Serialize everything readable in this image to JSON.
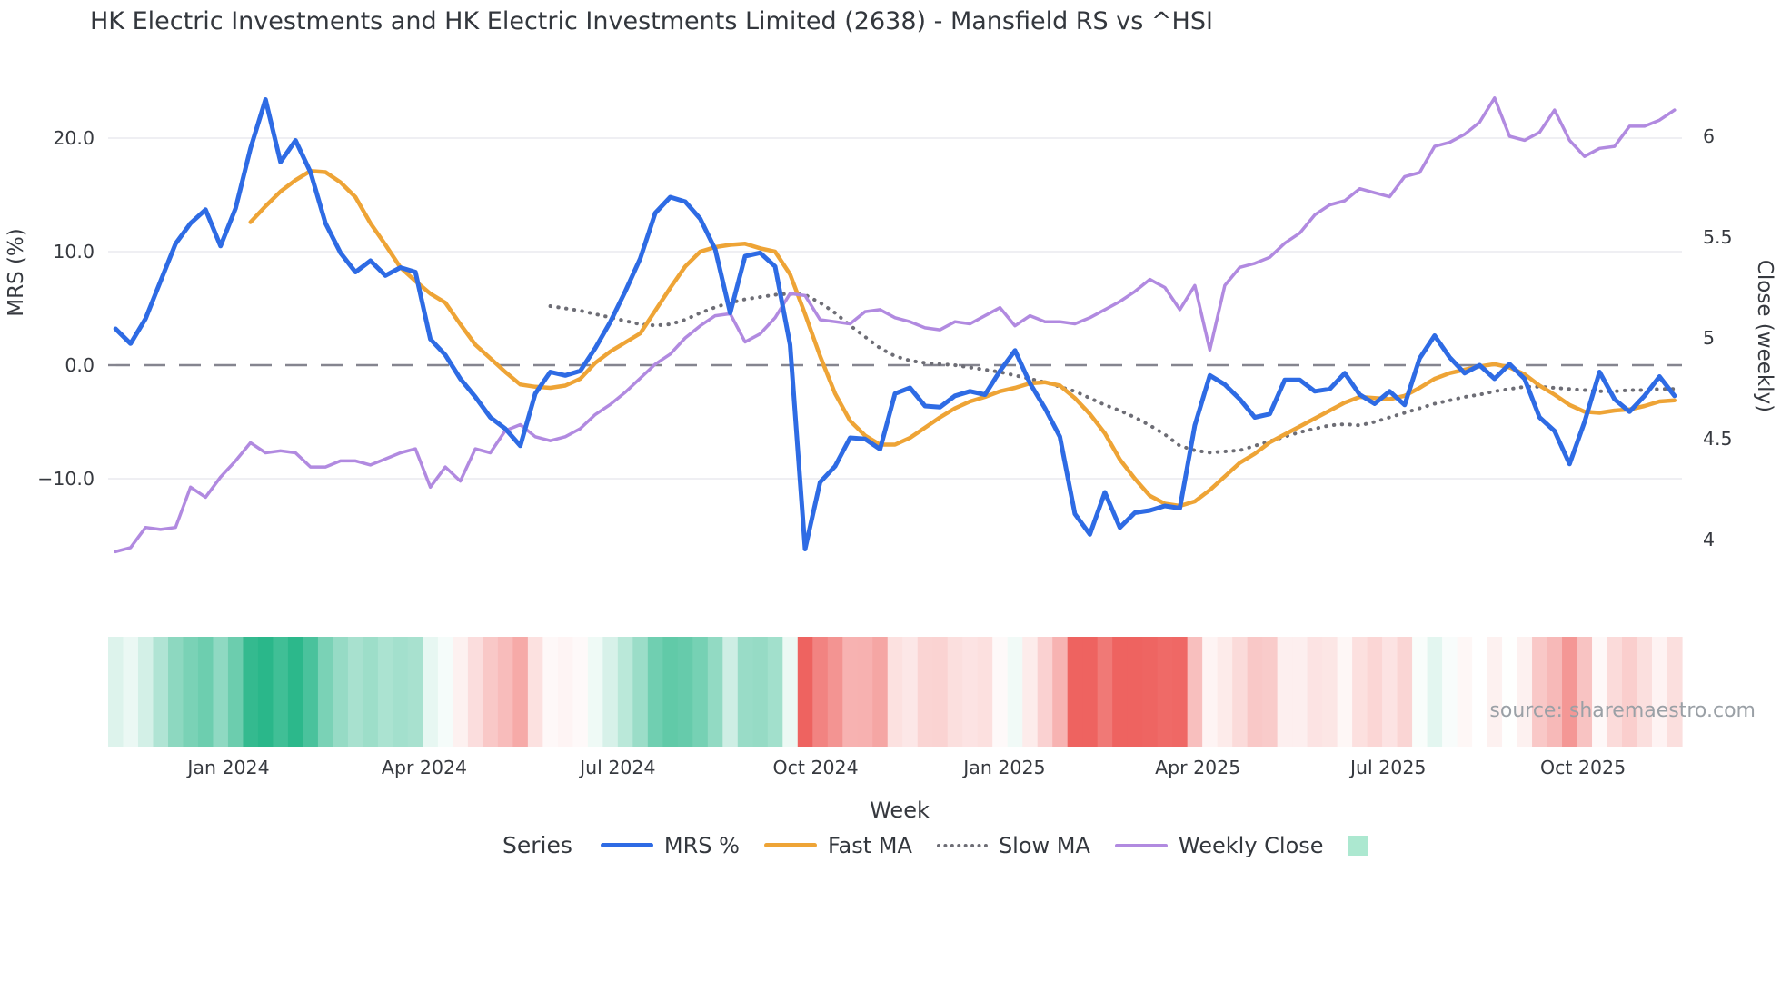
{
  "title": "HK Electric Investments and HK Electric Investments Limited (2638) - Mansfield RS vs ^HSI",
  "watermark": "source: sharemaestro.com",
  "axes": {
    "left_title": "MRS (%)",
    "right_title": "Close (weekly)",
    "x_title": "Week"
  },
  "legend": {
    "title": "Series",
    "items": [
      {
        "label": "MRS %",
        "swatch": "line",
        "color": "#2e6be4"
      },
      {
        "label": "Fast MA",
        "swatch": "line",
        "color": "#eea436"
      },
      {
        "label": "Slow MA",
        "swatch": "dotted",
        "color": "#6d6d75"
      },
      {
        "label": "Weekly Close",
        "swatch": "thin-line",
        "color": "#b18ae0"
      },
      {
        "label": "",
        "swatch": "square",
        "color": "#ace8d0"
      }
    ]
  },
  "chart_data": {
    "type": "line",
    "title": "HK Electric Investments and HK Electric Investments Limited (2638) - Mansfield RS vs ^HSI",
    "xlabel": "Week",
    "n_weeks": 105,
    "x_axis": {
      "tick_labels": [
        "Jan 2024",
        "Apr 2024",
        "Jul 2024",
        "Oct 2024",
        "Jan 2025",
        "Apr 2025",
        "Jul 2025",
        "Oct 2025"
      ],
      "tick_week_positions": [
        7.53,
        20.6,
        33.5,
        46.7,
        59.3,
        72.2,
        84.9,
        97.9
      ]
    },
    "y_left": {
      "label": "MRS (%)",
      "tick_labels": [
        "20.0",
        "10.0",
        "0.0",
        "−10.0"
      ],
      "tick_values": [
        20,
        10,
        0,
        -10
      ],
      "grid_tick_values": [
        20,
        10,
        -10
      ],
      "range": [
        -17.4,
        25.4
      ],
      "zero_line": "dashed"
    },
    "y_right": {
      "label": "Close (weekly)",
      "tick_labels": [
        "6",
        "5.5",
        "5",
        "4.5",
        "4"
      ],
      "tick_values": [
        6,
        5.5,
        5,
        4.5,
        4
      ],
      "range": [
        3.88,
        6.29
      ]
    },
    "series": [
      {
        "name": "MRS %",
        "axis": "left",
        "color": "#2e6be4",
        "style": "solid",
        "width": 5,
        "values": [
          3.2,
          1.9,
          4.1,
          7.4,
          10.7,
          12.5,
          13.7,
          10.5,
          13.8,
          19.1,
          23.4,
          17.9,
          19.8,
          17.0,
          12.5,
          9.9,
          8.2,
          9.2,
          7.9,
          8.6,
          8.2,
          2.3,
          0.9,
          -1.2,
          -2.8,
          -4.6,
          -5.6,
          -7.1,
          -2.5,
          -0.6,
          -0.9,
          -0.5,
          1.5,
          3.8,
          6.5,
          9.4,
          13.4,
          14.8,
          14.4,
          12.9,
          10.2,
          4.6,
          9.6,
          9.9,
          8.7,
          1.8,
          -16.2,
          -10.3,
          -8.9,
          -6.4,
          -6.5,
          -7.4,
          -2.5,
          -2.0,
          -3.6,
          -3.7,
          -2.7,
          -2.3,
          -2.6,
          -0.5,
          1.3,
          -1.6,
          -3.8,
          -6.3,
          -13.1,
          -14.9,
          -11.2,
          -14.3,
          -13.0,
          -12.8,
          -12.4,
          -12.6,
          -5.3,
          -0.9,
          -1.7,
          -3.0,
          -4.6,
          -4.3,
          -1.3,
          -1.3,
          -2.3,
          -2.1,
          -0.7,
          -2.6,
          -3.4,
          -2.3,
          -3.5,
          0.6,
          2.6,
          0.7,
          -0.7,
          0.0,
          -1.2,
          0.1,
          -1.2,
          -4.6,
          -5.8,
          -8.7,
          -5.0,
          -0.6,
          -3.0,
          -4.1,
          -2.7,
          -1.0,
          -2.7
        ]
      },
      {
        "name": "Fast MA",
        "axis": "left",
        "color": "#eea436",
        "style": "solid",
        "width": 4.5,
        "values": [
          null,
          null,
          null,
          null,
          null,
          null,
          null,
          null,
          null,
          12.6,
          14.0,
          15.3,
          16.3,
          17.1,
          17.0,
          16.1,
          14.8,
          12.5,
          10.6,
          8.6,
          7.4,
          6.3,
          5.5,
          3.6,
          1.8,
          0.6,
          -0.6,
          -1.7,
          -1.9,
          -2.0,
          -1.8,
          -1.2,
          0.2,
          1.2,
          2.0,
          2.8,
          4.8,
          6.8,
          8.7,
          10.0,
          10.4,
          10.6,
          10.7,
          10.3,
          10.0,
          8.0,
          4.5,
          0.8,
          -2.5,
          -4.9,
          -6.2,
          -7.0,
          -7.0,
          -6.4,
          -5.5,
          -4.6,
          -3.8,
          -3.2,
          -2.8,
          -2.3,
          -2.0,
          -1.6,
          -1.5,
          -1.8,
          -2.9,
          -4.3,
          -6.0,
          -8.3,
          -10.0,
          -11.5,
          -12.2,
          -12.4,
          -12.0,
          -11.0,
          -9.8,
          -8.6,
          -7.8,
          -6.8,
          -6.1,
          -5.4,
          -4.7,
          -4.0,
          -3.3,
          -2.8,
          -2.9,
          -3.0,
          -2.7,
          -2.0,
          -1.2,
          -0.7,
          -0.4,
          -0.1,
          0.1,
          -0.2,
          -0.8,
          -1.8,
          -2.6,
          -3.5,
          -4.1,
          -4.2,
          -4.0,
          -3.9,
          -3.6,
          -3.2,
          -3.1
        ]
      },
      {
        "name": "Slow MA",
        "axis": "left",
        "color": "#6d6d75",
        "style": "dotted",
        "width": 4,
        "values": [
          null,
          null,
          null,
          null,
          null,
          null,
          null,
          null,
          null,
          null,
          null,
          null,
          null,
          null,
          null,
          null,
          null,
          null,
          null,
          null,
          null,
          null,
          null,
          null,
          null,
          null,
          null,
          null,
          null,
          5.2,
          5.0,
          4.8,
          4.5,
          4.2,
          3.9,
          3.6,
          3.5,
          3.6,
          4.0,
          4.6,
          5.1,
          5.5,
          5.8,
          6.0,
          6.2,
          6.3,
          6.2,
          5.5,
          4.6,
          3.5,
          2.5,
          1.5,
          0.8,
          0.4,
          0.2,
          0.1,
          0.0,
          -0.2,
          -0.4,
          -0.6,
          -0.9,
          -1.2,
          -1.5,
          -1.9,
          -2.3,
          -2.9,
          -3.5,
          -4.0,
          -4.6,
          -5.3,
          -6.1,
          -7.1,
          -7.5,
          -7.7,
          -7.6,
          -7.5,
          -7.1,
          -6.7,
          -6.3,
          -5.9,
          -5.6,
          -5.3,
          -5.2,
          -5.3,
          -5.0,
          -4.6,
          -4.2,
          -3.8,
          -3.4,
          -3.1,
          -2.8,
          -2.6,
          -2.3,
          -2.1,
          -1.9,
          -1.9,
          -2.0,
          -2.1,
          -2.2,
          -2.3,
          -2.3,
          -2.2,
          -2.2,
          -2.1,
          -2.1
        ]
      },
      {
        "name": "Weekly Close",
        "axis": "right",
        "color": "#b18ae0",
        "style": "solid",
        "width": 3.5,
        "values": [
          3.94,
          3.96,
          4.06,
          4.05,
          4.06,
          4.26,
          4.21,
          4.31,
          4.39,
          4.48,
          4.43,
          4.44,
          4.43,
          4.36,
          4.36,
          4.39,
          4.39,
          4.37,
          4.4,
          4.43,
          4.45,
          4.26,
          4.36,
          4.29,
          4.45,
          4.43,
          4.54,
          4.57,
          4.51,
          4.49,
          4.51,
          4.55,
          4.62,
          4.67,
          4.73,
          4.8,
          4.87,
          4.92,
          5.0,
          5.06,
          5.11,
          5.12,
          4.98,
          5.02,
          5.1,
          5.22,
          5.21,
          5.09,
          5.08,
          5.07,
          5.13,
          5.14,
          5.1,
          5.08,
          5.05,
          5.04,
          5.08,
          5.07,
          5.11,
          5.15,
          5.06,
          5.11,
          5.08,
          5.08,
          5.07,
          5.1,
          5.14,
          5.18,
          5.23,
          5.29,
          5.25,
          5.14,
          5.26,
          4.94,
          5.26,
          5.35,
          5.37,
          5.4,
          5.47,
          5.52,
          5.61,
          5.66,
          5.68,
          5.74,
          5.72,
          5.7,
          5.8,
          5.82,
          5.95,
          5.97,
          6.01,
          6.07,
          6.19,
          6.0,
          5.98,
          6.02,
          6.13,
          5.98,
          5.9,
          5.94,
          5.95,
          6.05,
          6.05,
          6.08,
          6.13
        ]
      }
    ],
    "heatmap_strip": {
      "source_series": "MRS %",
      "positive_color": "#2ab78a",
      "negative_color": "#ee6360",
      "positive_cap": 20,
      "negative_cap": 13
    },
    "style_colors": {
      "grid": "#eaeaef",
      "zero_dash": "#85858f",
      "tick_text": "#36393f"
    }
  }
}
